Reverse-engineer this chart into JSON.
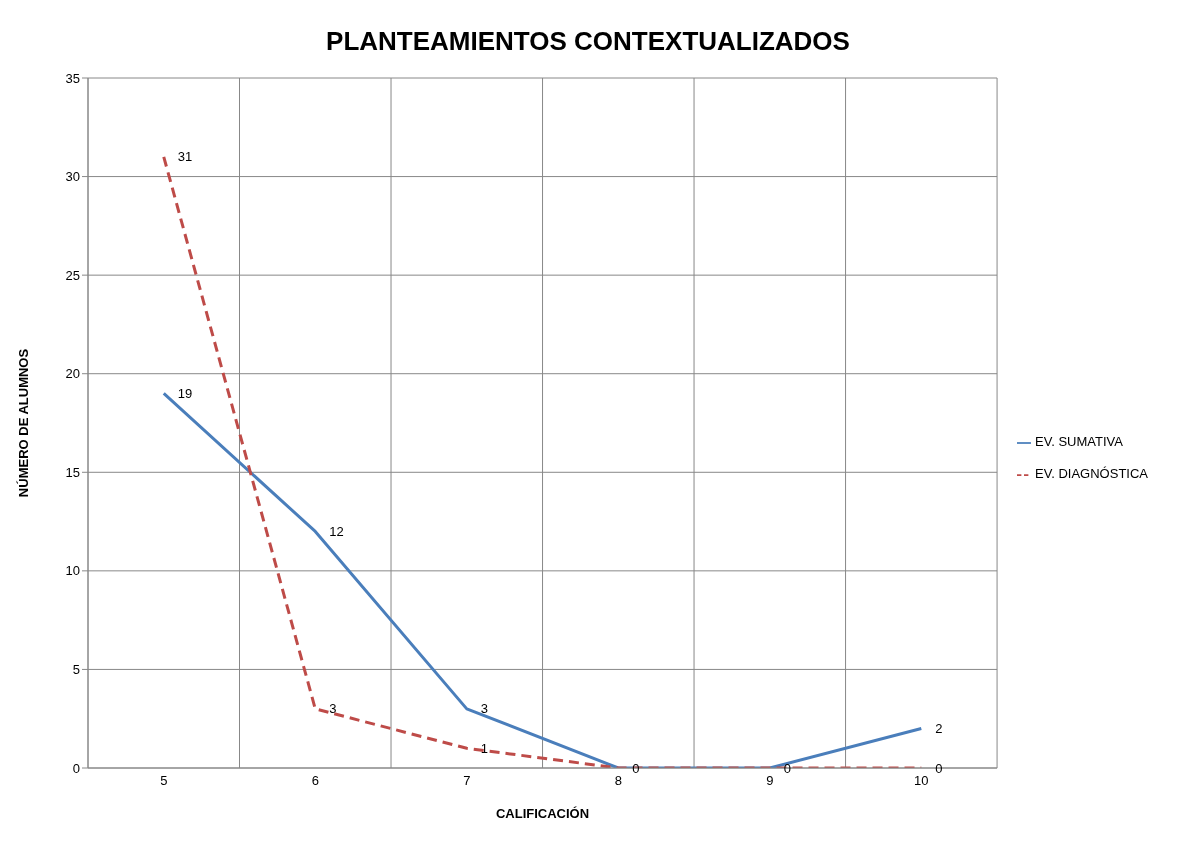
{
  "chart_data": {
    "type": "line",
    "title": "PLANTEAMIENTOS CONTEXTUALIZADOS",
    "xlabel": "CALIFICACIÓN",
    "ylabel": "NÚMERO DE ALUMNOS",
    "categories": [
      "5",
      "6",
      "7",
      "8",
      "9",
      "10"
    ],
    "series": [
      {
        "name": "EV. SUMATIVA",
        "color": "#4a7ebb",
        "values": [
          19,
          12,
          3,
          0,
          0,
          2
        ],
        "line_style": "solid",
        "value_labels": [
          "19",
          "12",
          "3",
          "0",
          "0",
          "2"
        ]
      },
      {
        "name": "EV. DIAGNÓSTICA",
        "color": "#be4b48",
        "values": [
          31,
          3,
          1,
          0,
          0,
          0
        ],
        "line_style": "dashed",
        "value_labels": [
          "31",
          "3",
          "1",
          null,
          null,
          "0"
        ]
      }
    ],
    "ylim": [
      0,
      35
    ],
    "yticks": [
      0,
      5,
      10,
      15,
      20,
      25,
      30,
      35
    ],
    "grid": true,
    "legend": "right"
  }
}
